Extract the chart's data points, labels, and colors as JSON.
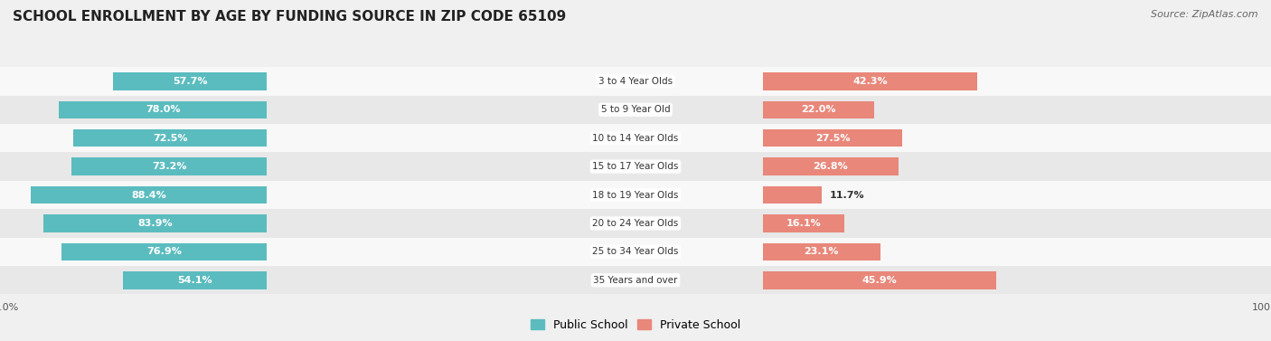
{
  "title": "SCHOOL ENROLLMENT BY AGE BY FUNDING SOURCE IN ZIP CODE 65109",
  "source": "Source: ZipAtlas.com",
  "categories": [
    "3 to 4 Year Olds",
    "5 to 9 Year Old",
    "10 to 14 Year Olds",
    "15 to 17 Year Olds",
    "18 to 19 Year Olds",
    "20 to 24 Year Olds",
    "25 to 34 Year Olds",
    "35 Years and over"
  ],
  "public_pct": [
    57.7,
    78.0,
    72.5,
    73.2,
    88.4,
    83.9,
    76.9,
    54.1
  ],
  "private_pct": [
    42.3,
    22.0,
    27.5,
    26.8,
    11.7,
    16.1,
    23.1,
    45.9
  ],
  "public_color": "#5bbcbf",
  "private_color": "#e8877a",
  "background_color": "#f0f0f0",
  "row_bg_light": "#f8f8f8",
  "row_bg_dark": "#e8e8e8",
  "legend_public": "Public School",
  "legend_private": "Private School",
  "title_fontsize": 11,
  "source_fontsize": 8,
  "bar_height": 0.62,
  "label_fontsize": 8
}
